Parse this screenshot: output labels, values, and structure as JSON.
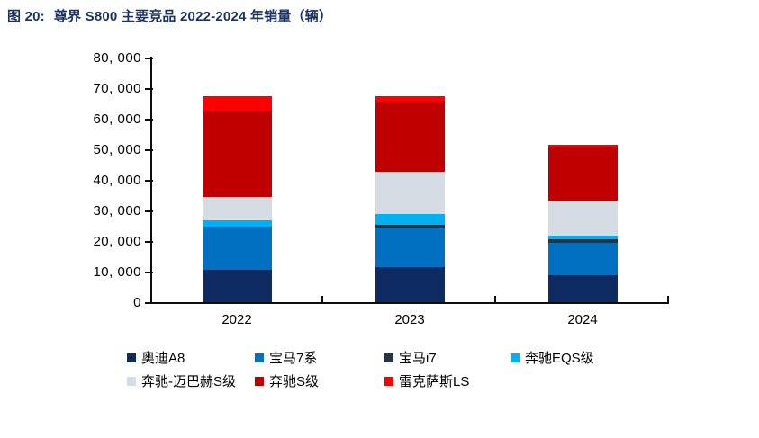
{
  "figure": {
    "title_prefix": "图 20:",
    "title_text": "尊界 S800 主要竞品 2022-2024 年销量（辆）",
    "title_color": "#1a3263"
  },
  "chart_data": {
    "type": "bar",
    "stacked": true,
    "title": "尊界 S800 主要竞品 2022-2024 年销量（辆）",
    "categories": [
      "2022",
      "2023",
      "2024"
    ],
    "series": [
      {
        "name": "奥迪A8",
        "color": "#0e2a62",
        "values": [
          10600,
          11600,
          8900
        ]
      },
      {
        "name": "宝马7系",
        "color": "#0070c0",
        "values": [
          14000,
          12700,
          10400
        ]
      },
      {
        "name": "宝马i7",
        "color": "#263444",
        "values": [
          200,
          1000,
          1200
        ]
      },
      {
        "name": "奔驰EQS级",
        "color": "#00b0f0",
        "values": [
          2100,
          3500,
          1200
        ]
      },
      {
        "name": "奔驰-迈巴赫S级",
        "color": "#d6dce4",
        "values": [
          7500,
          13900,
          11400
        ]
      },
      {
        "name": "奔驰S级",
        "color": "#c00000",
        "values": [
          28400,
          22800,
          17600
        ]
      },
      {
        "name": "雷克萨斯LS",
        "color": "#fe0000",
        "values": [
          4600,
          1800,
          900
        ]
      }
    ],
    "y_axis": {
      "min": 0,
      "max": 80000,
      "step": 10000,
      "tick_labels": [
        "0",
        "10, 000",
        "20, 000",
        "30, 000",
        "40, 000",
        "50, 000",
        "60, 000",
        "70, 000",
        "80, 000"
      ]
    },
    "x_axis": {
      "tick_labels": [
        "2022",
        "2023",
        "2024"
      ]
    },
    "legend_position": "bottom",
    "grid": false,
    "axis_color": "#0d0d0d",
    "background": "#ffffff"
  }
}
